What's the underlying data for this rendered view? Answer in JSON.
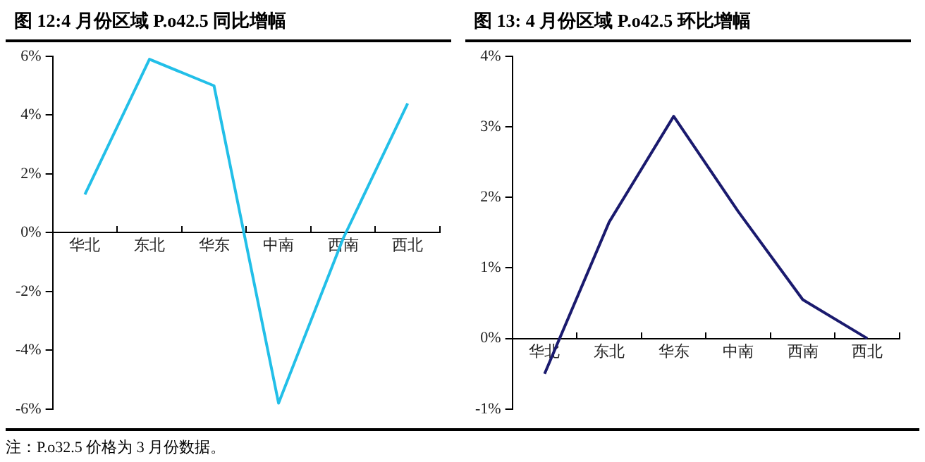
{
  "chart_data": [
    {
      "type": "line",
      "title": "图  12:4 月份区域 P.o42.5 同比增幅",
      "categories": [
        "华北",
        "东北",
        "华东",
        "中南",
        "西南",
        "西北"
      ],
      "series": [
        {
          "color": "#22bfe8",
          "values": [
            1.3,
            5.9,
            5.0,
            -5.8,
            -0.2,
            4.4
          ]
        }
      ],
      "ylim": [
        -6,
        6
      ],
      "yticks": [
        {
          "value": -6,
          "label": "-6%"
        },
        {
          "value": -4,
          "label": "-4%"
        },
        {
          "value": -2,
          "label": "-2%"
        },
        {
          "value": 0,
          "label": "0%"
        },
        {
          "value": 2,
          "label": "2%"
        },
        {
          "value": 4,
          "label": "4%"
        },
        {
          "value": 6,
          "label": "6%"
        }
      ],
      "annotations": [
        "注：P.o32.5 价格为 3 月份数据。"
      ]
    },
    {
      "type": "line",
      "title": "图  13: 4 月份区域 P.o42.5 环比增幅",
      "categories": [
        "华北",
        "东北",
        "华东",
        "中南",
        "西南",
        "西北"
      ],
      "series": [
        {
          "color": "#1a1a6e",
          "values": [
            -0.5,
            1.65,
            3.15,
            1.8,
            0.55,
            0.0
          ]
        }
      ],
      "ylim": [
        -1,
        4
      ],
      "yticks": [
        {
          "value": -1,
          "label": "-1%"
        },
        {
          "value": 0,
          "label": "0%"
        },
        {
          "value": 1,
          "label": "1%"
        },
        {
          "value": 2,
          "label": "2%"
        },
        {
          "value": 3,
          "label": "3%"
        },
        {
          "value": 4,
          "label": "4%"
        }
      ]
    }
  ]
}
